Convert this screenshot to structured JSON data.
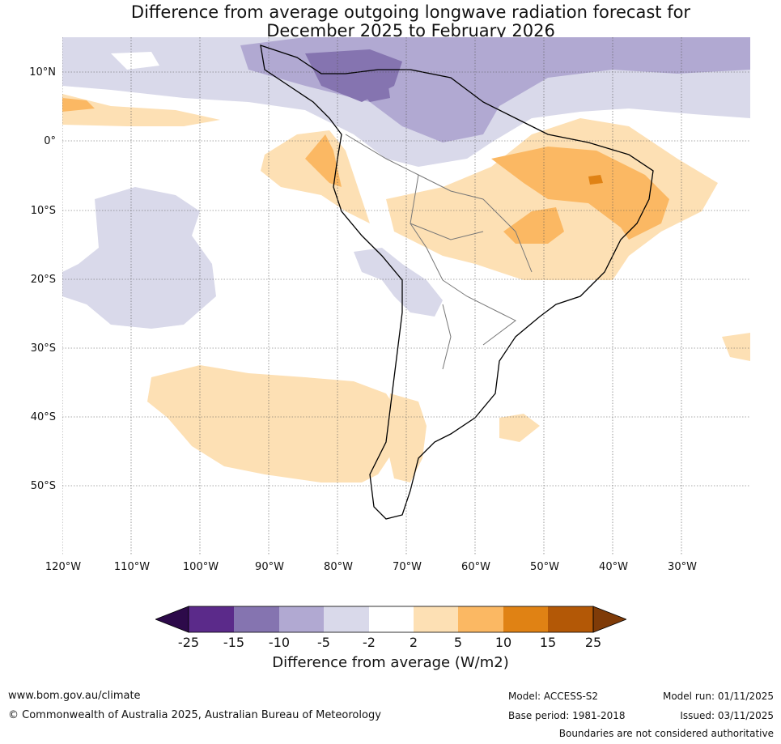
{
  "title_line1": "Difference from average outgoing longwave radiation forecast for",
  "title_line2": "December 2025 to February 2026",
  "lat_labels": [
    "10°N",
    "0°",
    "10°S",
    "20°S",
    "30°S",
    "40°S",
    "50°S"
  ],
  "lon_labels": [
    "120°W",
    "110°W",
    "100°W",
    "90°W",
    "80°W",
    "70°W",
    "60°W",
    "50°W",
    "40°W",
    "30°W"
  ],
  "colorbar": {
    "ticks": [
      "-25",
      "-15",
      "-10",
      "-5",
      "-2",
      "2",
      "5",
      "10",
      "15",
      "25"
    ],
    "label": "Difference from average (W/m2)",
    "colors": [
      "#2d0a4a",
      "#5b2a8a",
      "#8574b0",
      "#b1a9d2",
      "#d9d9ea",
      "#ffffff",
      "#fde0b4",
      "#fbb863",
      "#e08214",
      "#b35806",
      "#7f3b08"
    ]
  },
  "footer": {
    "website": "www.bom.gov.au/climate",
    "copyright": "© Commonwealth of Australia 2025, Australian Bureau of Meteorology",
    "model": "Model: ACCESS-S2",
    "base_period": "Base period: 1981-2018",
    "model_run": "Model run: 01/11/2025",
    "issued": "Issued: 03/11/2025",
    "disclaimer": "Boundaries are not considered authoritative"
  }
}
